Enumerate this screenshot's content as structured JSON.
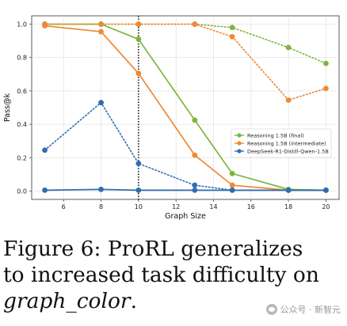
{
  "chart_data": {
    "type": "line",
    "xlabel": "Graph Size",
    "ylabel": "Pass@k",
    "xlim": [
      4.3,
      20.7
    ],
    "ylim": [
      -0.05,
      1.05
    ],
    "xticks": [
      6,
      8,
      10,
      12,
      14,
      16,
      18,
      20
    ],
    "yticks": [
      0.0,
      0.2,
      0.4,
      0.6,
      0.8,
      1.0
    ],
    "ytick_labels": [
      "0.0",
      "0.2",
      "0.4",
      "0.6",
      "0.8",
      "1.0"
    ],
    "grid": true,
    "legend_position": "center-right",
    "vertical_marker_x": 10,
    "x": [
      5,
      8,
      10,
      13,
      15,
      18,
      20
    ],
    "series": [
      {
        "name": "Reasoning 1.5B (final)",
        "color": "#7cb63b",
        "values": [
          1.0,
          1.0,
          0.91,
          0.425,
          0.105,
          0.01,
          0.005
        ],
        "solid_until": 20,
        "dotted_overlay": [
          1.0,
          1.0,
          1.0,
          1.0,
          0.98,
          0.86,
          0.765
        ]
      },
      {
        "name": "Reasoning 1.5B (intermediate)",
        "color": "#ee8935",
        "values": [
          0.99,
          0.955,
          0.705,
          0.215,
          0.035,
          0.005,
          0.005
        ],
        "dotted_overlay": [
          1.0,
          1.0,
          1.0,
          1.0,
          0.925,
          0.545,
          0.615
        ]
      },
      {
        "name": "DeepSeek-R1-Distill-Qwen-1.5B",
        "color": "#2f6db0",
        "values": [
          0.005,
          0.01,
          0.005,
          0.005,
          0.005,
          0.005,
          0.005
        ],
        "dotted_overlay": [
          0.245,
          0.53,
          0.165,
          0.035,
          0.005,
          0.005,
          0.005
        ]
      }
    ]
  },
  "caption": {
    "line1": "Figure 6:  ProRL generalizes",
    "line2": "to increased task difficulty on",
    "line3_italic": "graph_color",
    "line3_rest": "."
  },
  "watermark": {
    "text": "公众号 · 新智元",
    "icon": "wechat-icon"
  }
}
